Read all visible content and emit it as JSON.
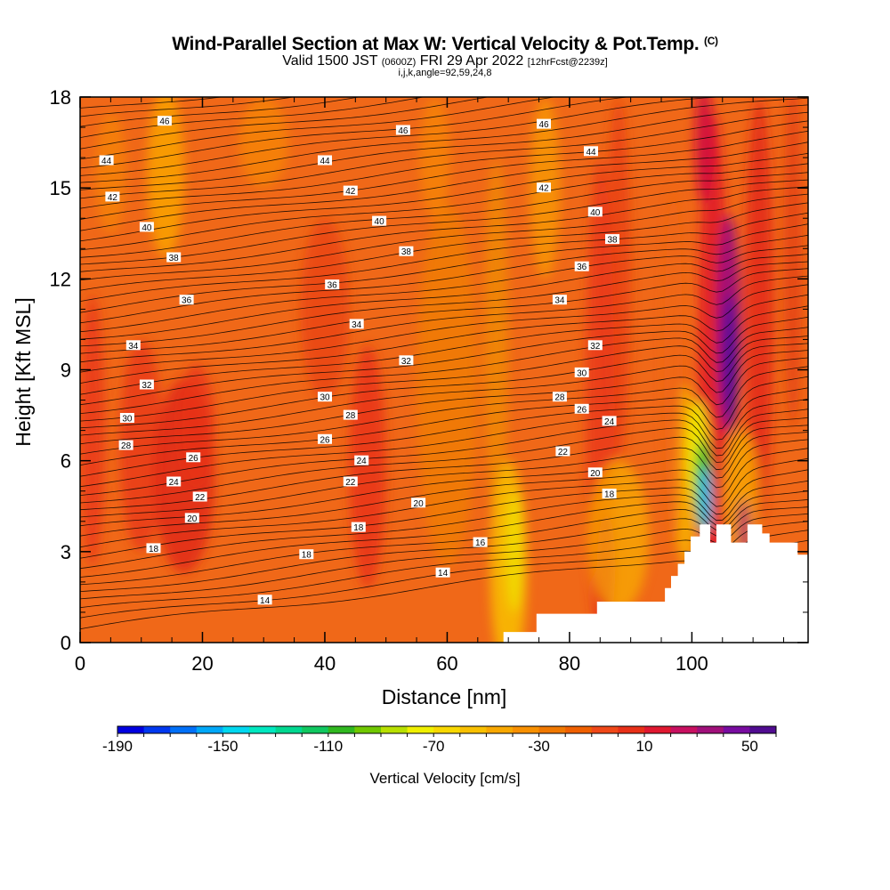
{
  "title": "Wind-Parallel Section at Max W: Vertical Velocity & Pot.Temp.",
  "title_mark": "(C)",
  "subtitle_pre": "Valid 1500 JST",
  "subtitle_z": "(0600Z)",
  "subtitle_mid": "FRI 29 Apr 2022",
  "subtitle_fcst": "[12hrFcst@2239z]",
  "subtitle2": "i,j,k,angle=92,59,24,8",
  "chart_data": {
    "type": "heatmap",
    "title": "Wind-Parallel Section at Max W: Vertical Velocity & Pot.Temp.",
    "xlabel": "Distance [nm]",
    "ylabel": "Height [Kft MSL]",
    "xlim": [
      0,
      119
    ],
    "ylim": [
      0,
      18
    ],
    "x_ticks": [
      0,
      20,
      40,
      60,
      80,
      100
    ],
    "y_ticks": [
      0,
      3,
      6,
      9,
      12,
      15,
      18
    ],
    "colorbar": {
      "title": "Vertical Velocity [cm/s]",
      "tick_labels": [
        "-190",
        "-150",
        "-110",
        "-70",
        "-30",
        "10",
        "50"
      ],
      "tick_values": [
        -190,
        -150,
        -110,
        -70,
        -30,
        10,
        50
      ],
      "colors": [
        "#0000e0",
        "#0038f0",
        "#0070f8",
        "#00a8f8",
        "#00d8f0",
        "#00e8c0",
        "#00d890",
        "#10c860",
        "#30b820",
        "#70c800",
        "#b8e000",
        "#f0f000",
        "#f8d800",
        "#f8c000",
        "#f8a800",
        "#f89000",
        "#f07800",
        "#f06000",
        "#f04818",
        "#e83018",
        "#e01830",
        "#c81060",
        "#a0107a",
        "#780ca0",
        "#500c90"
      ]
    },
    "theta_contour_labels": [
      {
        "x": 13.8,
        "y": 17.2,
        "value": "46"
      },
      {
        "x": 52.8,
        "y": 16.9,
        "value": "46"
      },
      {
        "x": 75.8,
        "y": 17.1,
        "value": "46"
      },
      {
        "x": 4.3,
        "y": 15.9,
        "value": "44"
      },
      {
        "x": 40.0,
        "y": 15.9,
        "value": "44"
      },
      {
        "x": 83.5,
        "y": 16.2,
        "value": "44"
      },
      {
        "x": 5.3,
        "y": 14.7,
        "value": "42"
      },
      {
        "x": 44.2,
        "y": 14.9,
        "value": "42"
      },
      {
        "x": 75.8,
        "y": 15.0,
        "value": "42"
      },
      {
        "x": 10.9,
        "y": 13.7,
        "value": "40"
      },
      {
        "x": 48.9,
        "y": 13.9,
        "value": "40"
      },
      {
        "x": 84.2,
        "y": 14.2,
        "value": "40"
      },
      {
        "x": 15.3,
        "y": 12.7,
        "value": "38"
      },
      {
        "x": 53.3,
        "y": 12.9,
        "value": "38"
      },
      {
        "x": 87.0,
        "y": 13.3,
        "value": "38"
      },
      {
        "x": 41.2,
        "y": 11.8,
        "value": "36"
      },
      {
        "x": 17.4,
        "y": 11.3,
        "value": "36"
      },
      {
        "x": 82.0,
        "y": 12.4,
        "value": "36"
      },
      {
        "x": 78.4,
        "y": 11.3,
        "value": "34"
      },
      {
        "x": 45.2,
        "y": 10.5,
        "value": "34"
      },
      {
        "x": 8.7,
        "y": 9.8,
        "value": "34"
      },
      {
        "x": 84.2,
        "y": 9.8,
        "value": "32"
      },
      {
        "x": 53.3,
        "y": 9.3,
        "value": "32"
      },
      {
        "x": 10.9,
        "y": 8.5,
        "value": "32"
      },
      {
        "x": 82.0,
        "y": 8.9,
        "value": "30"
      },
      {
        "x": 40.0,
        "y": 8.1,
        "value": "30"
      },
      {
        "x": 7.7,
        "y": 7.4,
        "value": "30"
      },
      {
        "x": 78.4,
        "y": 8.1,
        "value": "28"
      },
      {
        "x": 44.2,
        "y": 7.5,
        "value": "28"
      },
      {
        "x": 7.5,
        "y": 6.5,
        "value": "28"
      },
      {
        "x": 82.0,
        "y": 7.7,
        "value": "26"
      },
      {
        "x": 40.0,
        "y": 6.7,
        "value": "26"
      },
      {
        "x": 18.5,
        "y": 6.1,
        "value": "26"
      },
      {
        "x": 86.5,
        "y": 7.3,
        "value": "24"
      },
      {
        "x": 46.0,
        "y": 6.0,
        "value": "24"
      },
      {
        "x": 15.3,
        "y": 5.3,
        "value": "24"
      },
      {
        "x": 78.9,
        "y": 6.3,
        "value": "22"
      },
      {
        "x": 44.2,
        "y": 5.3,
        "value": "22"
      },
      {
        "x": 19.6,
        "y": 4.8,
        "value": "22"
      },
      {
        "x": 84.2,
        "y": 5.6,
        "value": "20"
      },
      {
        "x": 55.3,
        "y": 4.6,
        "value": "20"
      },
      {
        "x": 18.3,
        "y": 4.1,
        "value": "20"
      },
      {
        "x": 86.5,
        "y": 4.9,
        "value": "18"
      },
      {
        "x": 45.5,
        "y": 3.8,
        "value": "18"
      },
      {
        "x": 37.0,
        "y": 2.9,
        "value": "18"
      },
      {
        "x": 12.0,
        "y": 3.1,
        "value": "18"
      },
      {
        "x": 65.4,
        "y": 3.3,
        "value": "16"
      },
      {
        "x": 59.3,
        "y": 2.3,
        "value": "14"
      },
      {
        "x": 30.2,
        "y": 1.4,
        "value": "14"
      }
    ],
    "terrain": [
      [
        0,
        0
      ],
      [
        69.2,
        0
      ],
      [
        69.2,
        0.35
      ],
      [
        74.6,
        0.35
      ],
      [
        74.6,
        0.95
      ],
      [
        84.5,
        0.95
      ],
      [
        84.5,
        1.35
      ],
      [
        95.6,
        1.35
      ],
      [
        95.6,
        1.8
      ],
      [
        96.6,
        1.8
      ],
      [
        96.6,
        2.2
      ],
      [
        97.7,
        2.2
      ],
      [
        97.7,
        2.6
      ],
      [
        98.8,
        2.6
      ],
      [
        98.8,
        3.0
      ],
      [
        99.8,
        3.0
      ],
      [
        99.8,
        3.5
      ],
      [
        101.3,
        3.5
      ],
      [
        101.3,
        3.9
      ],
      [
        103.0,
        3.9
      ],
      [
        103.0,
        3.3
      ],
      [
        104.0,
        3.3
      ],
      [
        104.0,
        3.9
      ],
      [
        106.4,
        3.9
      ],
      [
        106.4,
        3.3
      ],
      [
        107.7,
        3.3
      ],
      [
        107.7,
        3.3
      ],
      [
        109.1,
        3.3
      ],
      [
        109.1,
        3.9
      ],
      [
        111.5,
        3.9
      ],
      [
        111.5,
        3.6
      ],
      [
        112.7,
        3.6
      ],
      [
        112.7,
        3.3
      ],
      [
        117.3,
        3.3
      ],
      [
        117.3,
        2.9
      ],
      [
        119,
        2.9
      ],
      [
        119,
        0
      ]
    ],
    "velocity_features": [
      {
        "kind": "updraft_max",
        "x": 105.5,
        "y": 9.2,
        "value": 60
      },
      {
        "kind": "downdraft_min",
        "x": 102.2,
        "y": 4.7,
        "value": -180
      },
      {
        "kind": "weak_downdraft",
        "x": 70.5,
        "y": 3.0,
        "value": -50
      }
    ]
  }
}
